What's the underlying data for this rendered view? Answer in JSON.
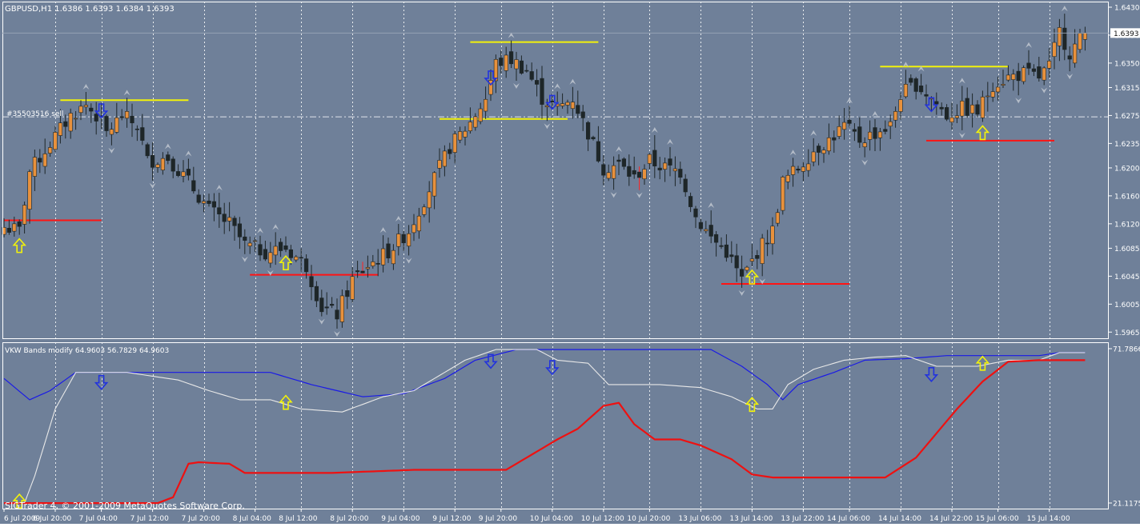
{
  "colors": {
    "background": "#6f8099",
    "axis_bg": "#ffffff",
    "grid": "#ffffff",
    "frame": "#ffffff",
    "text": "#ffffff",
    "bull": "#e8913c",
    "bear": "#1e2628",
    "support": "#ff1414",
    "resistance": "#f2f20a",
    "up_arrow": "#f2f20a",
    "down_arrow": "#2233dd",
    "fractal": "#b4bcc8",
    "vkw_upper": "#1a1ae6",
    "vkw_mid": "#e8e8e8",
    "vkw_lower": "#ee1111"
  },
  "main_panel": {
    "label": "GBPUSD,H1  1.6386 1.6393 1.6384 1.6393",
    "order_label": "#35503516 sell",
    "current_price_label": "1.6393"
  },
  "indicator_panel": {
    "label": "VKW Bands modify 64.9603 56.7829 64.9603",
    "copyright": "SIGTrader 4, © 2001-2009 MetaQuotes Software Corp."
  },
  "chart_data": [
    {
      "type": "candlestick",
      "symbol": "GBPUSD",
      "timeframe": "H1",
      "ohlc_shown": {
        "open": 1.6386,
        "high": 1.6393,
        "low": 1.6384,
        "close": 1.6393
      },
      "ylim": [
        1.5955,
        1.6438
      ],
      "y_ticks": [
        "1.6430",
        "1.6390",
        "1.6350",
        "1.6315",
        "1.6275",
        "1.6235",
        "1.6200",
        "1.6160",
        "1.6120",
        "1.6085",
        "1.6045",
        "1.6005",
        "1.5965"
      ],
      "x_ticks": [
        "6 Jul 2009",
        "6 Jul 20:00",
        "7 Jul 04:00",
        "7 Jul 12:00",
        "7 Jul 20:00",
        "8 Jul 04:00",
        "8 Jul 12:00",
        "8 Jul 20:00",
        "9 Jul 04:00",
        "9 Jul 12:00",
        "9 Jul 20:00",
        "10 Jul 04:00",
        "10 Jul 12:00",
        "10 Jul 20:00",
        "13 Jul 06:00",
        "13 Jul 14:00",
        "13 Jul 22:00",
        "14 Jul 06:00",
        "14 Jul 14:00",
        "14 Jul 22:00",
        "15 Jul 06:00",
        "15 Jul 14:00"
      ],
      "close_anchors": [
        [
          0,
          1.6115
        ],
        [
          3,
          1.611
        ],
        [
          5,
          1.6195
        ],
        [
          9,
          1.6235
        ],
        [
          13,
          1.6275
        ],
        [
          16,
          1.629
        ],
        [
          18,
          1.6275
        ],
        [
          20,
          1.625
        ],
        [
          23,
          1.6275
        ],
        [
          26,
          1.626
        ],
        [
          28,
          1.621
        ],
        [
          32,
          1.6215
        ],
        [
          36,
          1.618
        ],
        [
          40,
          1.614
        ],
        [
          44,
          1.612
        ],
        [
          47,
          1.609
        ],
        [
          51,
          1.608
        ],
        [
          55,
          1.6085
        ],
        [
          59,
          1.606
        ],
        [
          62,
          1.6
        ],
        [
          65,
          1.599
        ],
        [
          68,
          1.604
        ],
        [
          71,
          1.606
        ],
        [
          75,
          1.608
        ],
        [
          79,
          1.611
        ],
        [
          83,
          1.617
        ],
        [
          87,
          1.623
        ],
        [
          91,
          1.6265
        ],
        [
          94,
          1.63
        ],
        [
          96,
          1.635
        ],
        [
          99,
          1.6355
        ],
        [
          102,
          1.634
        ],
        [
          105,
          1.63
        ],
        [
          108,
          1.6285
        ],
        [
          111,
          1.63
        ],
        [
          114,
          1.625
        ],
        [
          117,
          1.62
        ],
        [
          120,
          1.6205
        ],
        [
          123,
          1.6185
        ],
        [
          126,
          1.621
        ],
        [
          129,
          1.62
        ],
        [
          132,
          1.6195
        ],
        [
          135,
          1.613
        ],
        [
          138,
          1.61
        ],
        [
          141,
          1.608
        ],
        [
          144,
          1.604
        ],
        [
          147,
          1.608
        ],
        [
          150,
          1.611
        ],
        [
          152,
          1.618
        ],
        [
          155,
          1.62
        ],
        [
          158,
          1.6225
        ],
        [
          161,
          1.624
        ],
        [
          164,
          1.626
        ],
        [
          167,
          1.624
        ],
        [
          170,
          1.625
        ],
        [
          173,
          1.626
        ],
        [
          175,
          1.6305
        ],
        [
          178,
          1.632
        ],
        [
          181,
          1.63
        ],
        [
          184,
          1.6275
        ],
        [
          187,
          1.6285
        ],
        [
          190,
          1.628
        ],
        [
          193,
          1.632
        ],
        [
          196,
          1.633
        ],
        [
          199,
          1.6335
        ],
        [
          202,
          1.633
        ],
        [
          204,
          1.6345
        ],
        [
          206,
          1.6395
        ],
        [
          208,
          1.6365
        ],
        [
          211,
          1.6393
        ]
      ],
      "red_marked_candles": [
        70,
        124
      ],
      "support_levels": [
        {
          "price": 1.6125,
          "from_bar": 0,
          "to_bar": 19
        },
        {
          "price": 1.6047,
          "from_bar": 48,
          "to_bar": 73
        },
        {
          "price": 1.6034,
          "from_bar": 140,
          "to_bar": 165
        },
        {
          "price": 1.6239,
          "from_bar": 180,
          "to_bar": 205
        }
      ],
      "resistance_levels": [
        {
          "price": 1.6297,
          "from_bar": 11,
          "to_bar": 36
        },
        {
          "price": 1.627,
          "from_bar": 85,
          "to_bar": 110
        },
        {
          "price": 1.638,
          "from_bar": 91,
          "to_bar": 116
        },
        {
          "price": 1.6345,
          "from_bar": 171,
          "to_bar": 196
        }
      ],
      "order_level": 1.6273,
      "up_signal_bars": [
        3,
        55,
        146,
        191
      ],
      "down_signal_bars": [
        19,
        95,
        107,
        181
      ]
    },
    {
      "type": "line",
      "name": "VKW Bands modify",
      "values_shown": [
        64.9603,
        56.7829,
        64.9603
      ],
      "ylim": [
        21.1175,
        71.7866
      ],
      "y_ticks": [
        "71.7866",
        "21.1175"
      ],
      "series": [
        {
          "name": "upper",
          "anchors": [
            [
              0,
              62.0
            ],
            [
              5,
              55.0
            ],
            [
              9,
              58.0
            ],
            [
              14,
              64.0
            ],
            [
              24,
              64.0
            ],
            [
              38,
              64.0
            ],
            [
              52,
              64.0
            ],
            [
              60,
              60.0
            ],
            [
              70,
              56.0
            ],
            [
              78,
              57.0
            ],
            [
              86,
              62.0
            ],
            [
              92,
              68.0
            ],
            [
              100,
              71.5
            ],
            [
              130,
              71.5
            ],
            [
              138,
              71.5
            ],
            [
              144,
              66.0
            ],
            [
              149,
              60.0
            ],
            [
              152,
              55.0
            ],
            [
              155,
              60.0
            ],
            [
              162,
              64.0
            ],
            [
              168,
              68.0
            ],
            [
              176,
              68.5
            ],
            [
              184,
              69.5
            ],
            [
              192,
              69.5
            ],
            [
              202,
              69.5
            ],
            [
              206,
              70.5
            ],
            [
              211,
              70.5
            ]
          ]
        },
        {
          "name": "middle",
          "anchors": [
            [
              0,
              21.1
            ],
            [
              4,
              21.1
            ],
            [
              6,
              30.0
            ],
            [
              10,
              52.0
            ],
            [
              14,
              64.0
            ],
            [
              24,
              64.0
            ],
            [
              34,
              61.5
            ],
            [
              40,
              58.0
            ],
            [
              46,
              55.0
            ],
            [
              52,
              55.0
            ],
            [
              58,
              52.0
            ],
            [
              66,
              51.0
            ],
            [
              74,
              56.0
            ],
            [
              80,
              58.0
            ],
            [
              86,
              64.0
            ],
            [
              90,
              68.0
            ],
            [
              96,
              71.5
            ],
            [
              104,
              71.5
            ],
            [
              108,
              68.0
            ],
            [
              114,
              67.0
            ],
            [
              118,
              60.0
            ],
            [
              128,
              60.0
            ],
            [
              136,
              59.0
            ],
            [
              142,
              56.0
            ],
            [
              147,
              52.0
            ],
            [
              150,
              52.0
            ],
            [
              153,
              60.0
            ],
            [
              158,
              65.0
            ],
            [
              164,
              68.0
            ],
            [
              170,
              69.0
            ],
            [
              176,
              69.5
            ],
            [
              182,
              66.0
            ],
            [
              190,
              66.0
            ],
            [
              196,
              68.0
            ],
            [
              202,
              68.0
            ],
            [
              206,
              70.5
            ],
            [
              211,
              70.5
            ]
          ]
        },
        {
          "name": "lower",
          "anchors": [
            [
              0,
              21.1
            ],
            [
              30,
              21.1
            ],
            [
              33,
              23.0
            ],
            [
              36,
              34.0
            ],
            [
              38,
              34.5
            ],
            [
              44,
              34.0
            ],
            [
              47,
              31.0
            ],
            [
              52,
              31.0
            ],
            [
              64,
              31.0
            ],
            [
              80,
              32.0
            ],
            [
              98,
              32.0
            ],
            [
              103,
              37.0
            ],
            [
              108,
              42.0
            ],
            [
              112,
              45.5
            ],
            [
              117,
              53.0
            ],
            [
              120,
              54.0
            ],
            [
              123,
              47.0
            ],
            [
              127,
              42.0
            ],
            [
              132,
              42.0
            ],
            [
              136,
              40.0
            ],
            [
              142,
              35.5
            ],
            [
              146,
              30.5
            ],
            [
              150,
              29.5
            ],
            [
              160,
              29.5
            ],
            [
              172,
              29.5
            ],
            [
              178,
              36.0
            ],
            [
              186,
              52.0
            ],
            [
              191,
              61.0
            ],
            [
              196,
              67.5
            ],
            [
              202,
              68.0
            ],
            [
              206,
              68.0
            ],
            [
              211,
              68.0
            ]
          ]
        }
      ],
      "up_signal_bars": [
        3,
        55,
        146,
        191
      ],
      "down_signal_bars": [
        19,
        95,
        107,
        181
      ]
    }
  ]
}
